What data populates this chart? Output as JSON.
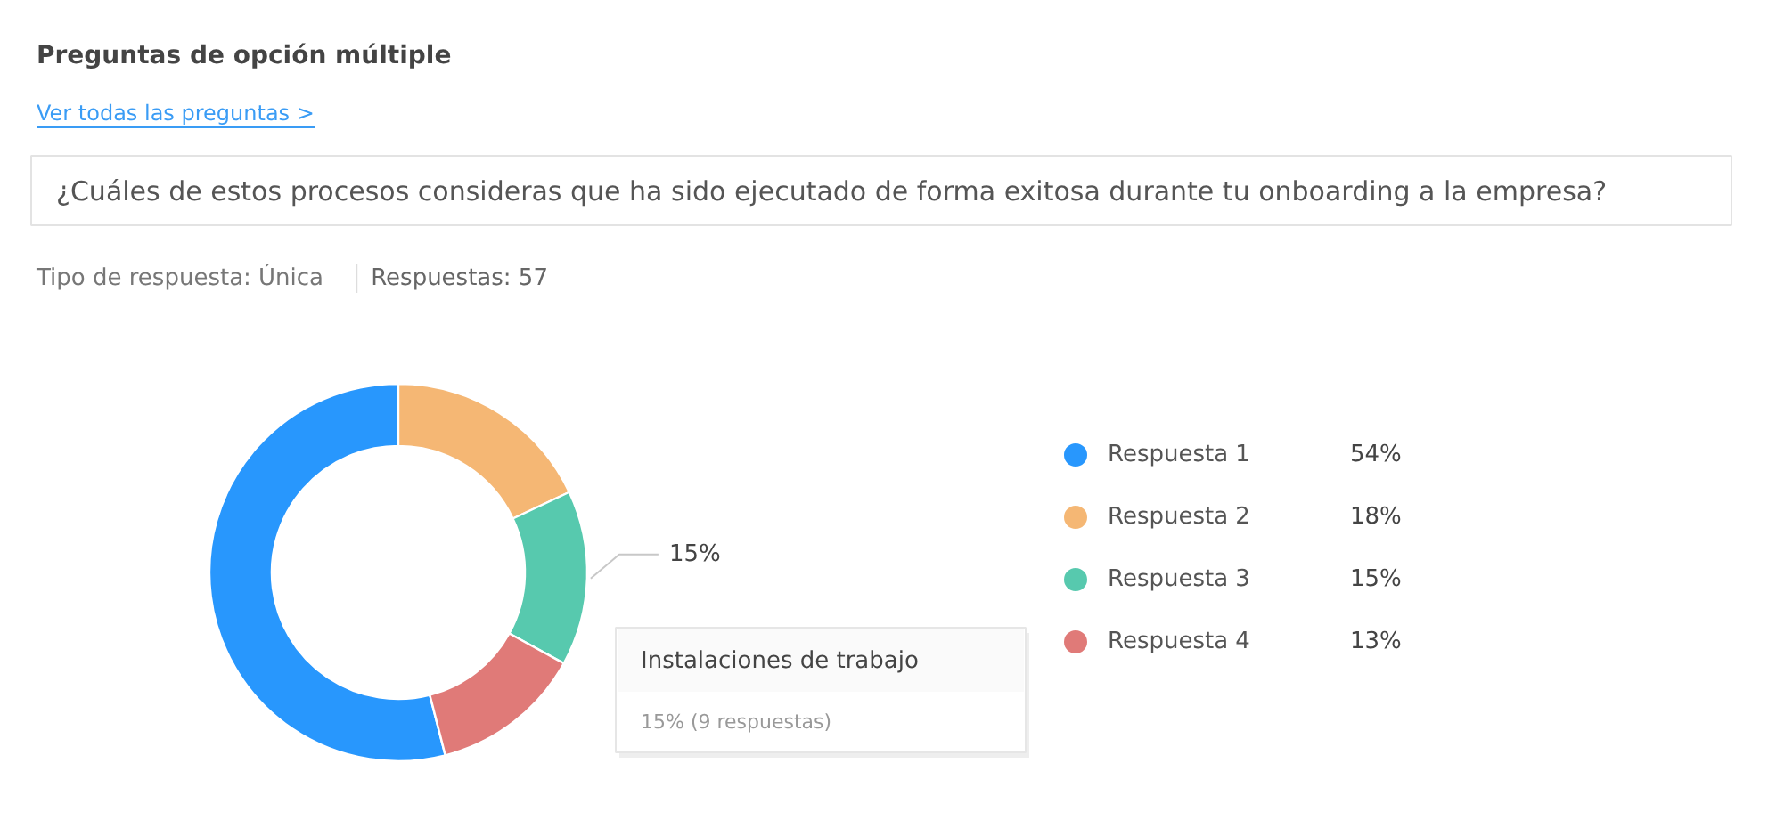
{
  "chart_data": {
    "type": "donut",
    "title": "Preguntas de opción múltiple",
    "subtitle": "¿Cuáles de estos procesos consideras que ha sido ejecutado de forma exitosa durante tu onboarding a la empresa?",
    "categories": [
      "Respuesta 1",
      "Respuesta 2",
      "Respuesta 3",
      "Respuesta 4"
    ],
    "values": [
      54,
      18,
      15,
      13
    ],
    "colors": [
      "#2897fd",
      "#f5b774",
      "#57c9ae",
      "#e07a78"
    ],
    "value_labels": [
      "54%",
      "18%",
      "15%",
      "13%"
    ],
    "legend": "right",
    "annotations": [
      "Ver todas las preguntas >",
      "Tipo de respuesta: Única",
      "Respuestas: 57",
      {
        "text": "15%",
        "x": "Respuesta 3"
      },
      "Instalaciones de trabajo",
      "15% (9 respuestas)"
    ]
  }
}
